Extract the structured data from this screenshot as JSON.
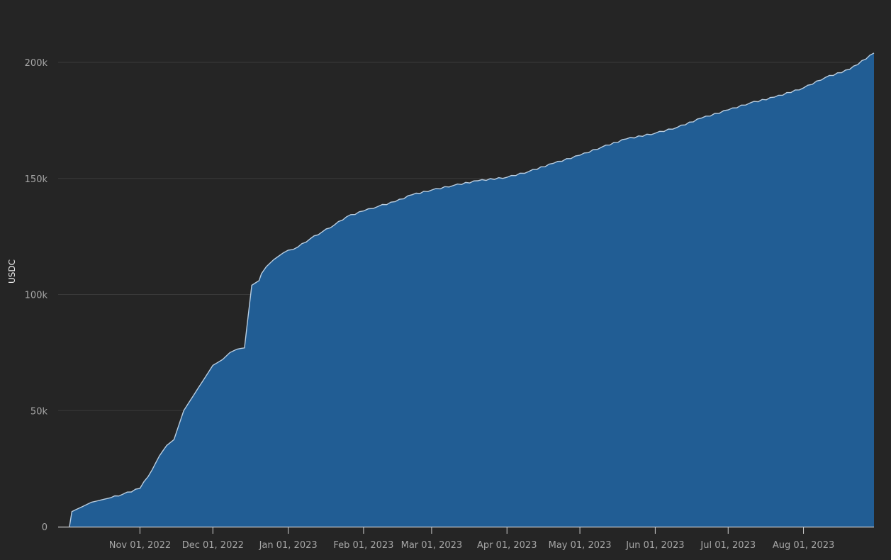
{
  "chart_data": {
    "type": "area",
    "title": "",
    "xlabel": "",
    "ylabel": "USDC",
    "x_tick_labels": [
      "Nov 01, 2022",
      "Dec 01, 2022",
      "Jan 01, 2023",
      "Feb 01, 2023",
      "Mar 01, 2023",
      "Apr 01, 2023",
      "May 01, 2023",
      "Jun 01, 2023",
      "Jul 01, 2023",
      "Aug 01, 2023"
    ],
    "y_tick_labels": [
      "0",
      "50k",
      "100k",
      "150k",
      "200k"
    ],
    "y_ticks": [
      0,
      50000,
      100000,
      150000,
      200000
    ],
    "ylim": [
      0,
      204000
    ],
    "xlim": [
      "2022-10-03",
      "2023-08-30"
    ],
    "grid": true,
    "colors": {
      "background": "#252525",
      "fill": "#215d94",
      "line": "#b9cde0",
      "grid": "#3a3a3a",
      "axis": "#d0d0d0"
    },
    "series": [
      {
        "x": [
          "2022-10-03",
          "2022-10-04",
          "2022-10-08",
          "2022-10-12",
          "2022-10-16",
          "2022-10-20",
          "2022-10-25",
          "2022-11-01",
          "2022-11-06",
          "2022-11-09",
          "2022-11-12",
          "2022-11-15",
          "2022-11-19",
          "2022-11-23",
          "2022-11-27",
          "2022-12-01",
          "2022-12-05",
          "2022-12-08",
          "2022-12-11",
          "2022-12-14",
          "2022-12-17",
          "2022-12-20",
          "2022-12-21",
          "2022-12-23",
          "2022-12-26",
          "2022-12-30",
          "2023-01-05",
          "2023-01-10",
          "2023-01-15",
          "2023-01-20",
          "2023-01-25",
          "2023-02-01",
          "2023-02-07",
          "2023-02-14",
          "2023-02-21",
          "2023-03-01",
          "2023-03-10",
          "2023-03-20",
          "2023-04-01",
          "2023-04-10",
          "2023-04-20",
          "2023-05-01",
          "2023-05-10",
          "2023-05-20",
          "2023-06-01",
          "2023-06-10",
          "2023-06-20",
          "2023-07-01",
          "2023-07-10",
          "2023-07-20",
          "2023-08-01",
          "2023-08-10",
          "2023-08-20",
          "2023-08-30"
        ],
        "y": [
          0,
          6500,
          8500,
          10500,
          11500,
          12500,
          14000,
          16500,
          24500,
          30500,
          35000,
          37500,
          50000,
          56500,
          63000,
          69500,
          72000,
          75000,
          76500,
          77000,
          104000,
          106000,
          109000,
          112000,
          115000,
          118000,
          120500,
          124000,
          127000,
          130000,
          133500,
          136000,
          138000,
          140000,
          143000,
          145000,
          147000,
          149000,
          150500,
          153000,
          156500,
          160000,
          163500,
          167000,
          169500,
          172000,
          176000,
          179500,
          182500,
          185000,
          189000,
          193500,
          197000,
          204000
        ]
      }
    ]
  }
}
